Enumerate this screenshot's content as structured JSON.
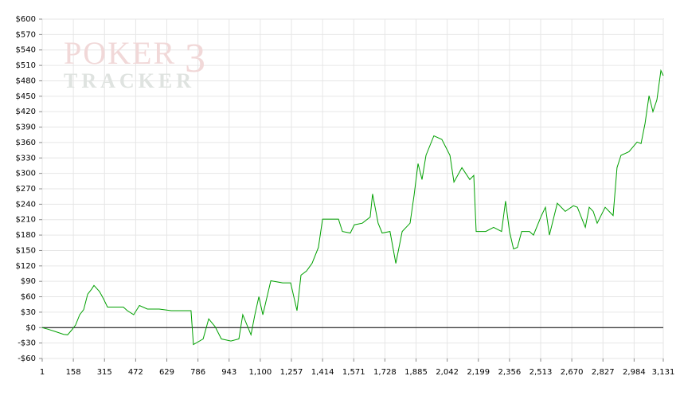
{
  "watermark": {
    "top": "POKER",
    "number": "3",
    "bottom": "TRACKER"
  },
  "chart_data": {
    "type": "line",
    "x": [
      1,
      29,
      69,
      109,
      129,
      149,
      169,
      190,
      210,
      230,
      250,
      262,
      290,
      310,
      330,
      370,
      410,
      430,
      462,
      491,
      531,
      591,
      651,
      711,
      751,
      763,
      812,
      840,
      872,
      904,
      952,
      992,
      1012,
      1053,
      1073,
      1093,
      1113,
      1153,
      1213,
      1253,
      1285,
      1305,
      1333,
      1361,
      1393,
      1414,
      1454,
      1494,
      1514,
      1554,
      1574,
      1614,
      1654,
      1666,
      1694,
      1714,
      1754,
      1783,
      1815,
      1855,
      1875,
      1895,
      1915,
      1935,
      1975,
      2015,
      2056,
      2076,
      2116,
      2156,
      2176,
      2188,
      2236,
      2276,
      2316,
      2336,
      2356,
      2376,
      2396,
      2417,
      2457,
      2477,
      2517,
      2537,
      2557,
      2597,
      2637,
      2678,
      2698,
      2738,
      2758,
      2778,
      2798,
      2838,
      2878,
      2898,
      2918,
      2958,
      2999,
      3019,
      3039,
      3059,
      3079,
      3099,
      3119,
      3131
    ],
    "series": [
      {
        "color": "#00a000",
        "values": [
          0,
          -3,
          -8,
          -13,
          -14,
          -5,
          5,
          25,
          35,
          65,
          75,
          82,
          70,
          56,
          40,
          40,
          40,
          33,
          25,
          43,
          36,
          36,
          33,
          33,
          33,
          -33,
          -22,
          17,
          2,
          -22,
          -26,
          -22,
          25,
          -14,
          25,
          60,
          25,
          91,
          87,
          87,
          33,
          102,
          110,
          125,
          156,
          211,
          211,
          211,
          187,
          184,
          200,
          203,
          215,
          260,
          203,
          184,
          187,
          125,
          187,
          203,
          257,
          319,
          288,
          335,
          373,
          366,
          335,
          283,
          311,
          288,
          296,
          187,
          187,
          195,
          187,
          246,
          187,
          153,
          156,
          187,
          187,
          180,
          218,
          234,
          180,
          242,
          226,
          237,
          234,
          195,
          234,
          226,
          203,
          234,
          218,
          311,
          335,
          342,
          361,
          358,
          397,
          451,
          420,
          443,
          500,
          490
        ]
      }
    ],
    "xlim": [
      1,
      3131
    ],
    "ylim": [
      -60,
      600
    ],
    "xticks": [
      1,
      158,
      315,
      472,
      629,
      786,
      943,
      {
        "value": 1100,
        "label": "1,100"
      },
      {
        "value": 1257,
        "label": "1,257"
      },
      {
        "value": 1414,
        "label": "1,414"
      },
      {
        "value": 1571,
        "label": "1,571"
      },
      {
        "value": 1728,
        "label": "1,728"
      },
      {
        "value": 1885,
        "label": "1,885"
      },
      {
        "value": 2042,
        "label": "2,042"
      },
      {
        "value": 2199,
        "label": "2,199"
      },
      {
        "value": 2356,
        "label": "2,356"
      },
      {
        "value": 2513,
        "label": "2,513"
      },
      {
        "value": 2670,
        "label": "2,670"
      },
      {
        "value": 2827,
        "label": "2,827"
      },
      {
        "value": 2984,
        "label": "2,984"
      },
      {
        "value": 3131,
        "label": "3,131"
      }
    ],
    "yticks": [
      {
        "value": -60,
        "label": "-$60"
      },
      {
        "value": -30,
        "label": "-$30"
      },
      {
        "value": 0,
        "label": "$0"
      },
      {
        "value": 30,
        "label": "$30"
      },
      {
        "value": 60,
        "label": "$60"
      },
      {
        "value": 90,
        "label": "$90"
      },
      {
        "value": 120,
        "label": "$120"
      },
      {
        "value": 150,
        "label": "$150"
      },
      {
        "value": 180,
        "label": "$180"
      },
      {
        "value": 210,
        "label": "$210"
      },
      {
        "value": 240,
        "label": "$240"
      },
      {
        "value": 270,
        "label": "$270"
      },
      {
        "value": 300,
        "label": "$300"
      },
      {
        "value": 330,
        "label": "$330"
      },
      {
        "value": 360,
        "label": "$360"
      },
      {
        "value": 390,
        "label": "$390"
      },
      {
        "value": 420,
        "label": "$420"
      },
      {
        "value": 450,
        "label": "$450"
      },
      {
        "value": 480,
        "label": "$480"
      },
      {
        "value": 510,
        "label": "$510"
      },
      {
        "value": 540,
        "label": "$540"
      },
      {
        "value": 570,
        "label": "$570"
      },
      {
        "value": 600,
        "label": "$600"
      }
    ],
    "grid": true,
    "zero_line": true
  }
}
